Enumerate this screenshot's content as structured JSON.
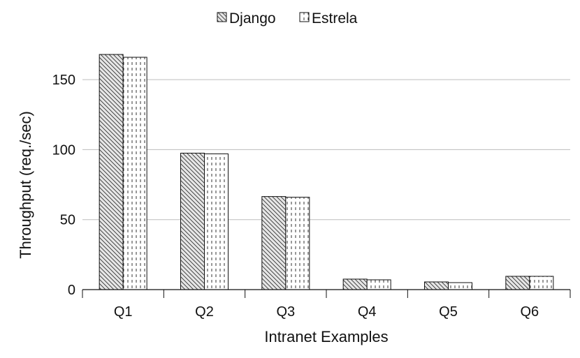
{
  "chart_data": {
    "type": "bar",
    "title": "",
    "xlabel": "Intranet Examples",
    "ylabel": "Throughput (req./sec)",
    "categories": [
      "Q1",
      "Q2",
      "Q3",
      "Q4",
      "Q5",
      "Q6"
    ],
    "series": [
      {
        "name": "Django",
        "values": [
          168,
          97.5,
          66.5,
          7.5,
          5.5,
          9.5
        ]
      },
      {
        "name": "Estrela",
        "values": [
          166,
          97,
          66,
          7,
          5,
          9.5
        ]
      }
    ],
    "ylim": [
      0,
      175
    ],
    "yticks": [
      0,
      50,
      100,
      150
    ],
    "grid": true,
    "legend": "top-center"
  }
}
